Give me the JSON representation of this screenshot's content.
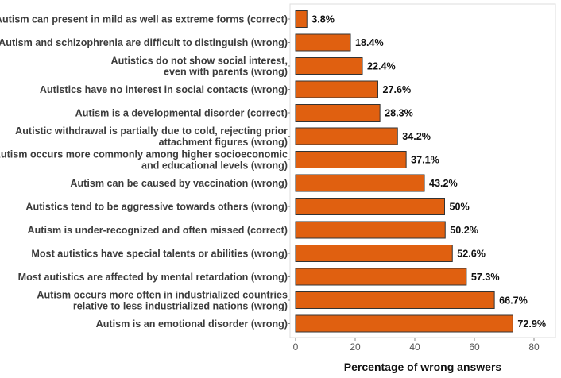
{
  "chart_data": {
    "type": "bar",
    "orientation": "horizontal",
    "title": "",
    "xlabel": "Percentage of wrong answers",
    "ylabel": "",
    "xlim": [
      0,
      88
    ],
    "xticks": [
      0,
      20,
      40,
      60,
      80
    ],
    "grid": false,
    "bar_color": "#e06010",
    "bar_edge_color": "#333333",
    "categories": [
      [
        "Autism can present in mild as well  as extreme forms (correct)"
      ],
      [
        "Autism and schizophrenia are difficult to distinguish (wrong)"
      ],
      [
        "Autistics do not show social interest,",
        "even with parents (wrong)"
      ],
      [
        "Autistics have no interest in social contacts (wrong)"
      ],
      [
        "Autism is a developmental disorder (correct)"
      ],
      [
        "Autistic withdrawal is partially due to cold, rejecting prior",
        "attachment figures (wrong)"
      ],
      [
        "Autism occurs more commonly among higher socioeconomic",
        "and educational levels (wrong)"
      ],
      [
        "Autism can be caused by vaccination (wrong)"
      ],
      [
        "Autistics tend to be aggressive towards others (wrong)"
      ],
      [
        "Autism is under-recognized and often missed (correct)"
      ],
      [
        "Most autistics have special talents or abilities (wrong)"
      ],
      [
        "Most autistics are affected by mental retardation (wrong)"
      ],
      [
        "Autism occurs more often in industrialized countries",
        "relative to less industrialized nations (wrong)"
      ],
      [
        "Autism is an emotional disorder (wrong)"
      ]
    ],
    "values": [
      3.8,
      18.4,
      22.4,
      27.6,
      28.3,
      34.2,
      37.1,
      43.2,
      50,
      50.2,
      52.6,
      57.3,
      66.7,
      72.9
    ],
    "data_labels": [
      "3.8%",
      "18.4%",
      "22.4%",
      "27.6%",
      "28.3%",
      "34.2%",
      "37.1%",
      "43.2%",
      "50%",
      "50.2%",
      "52.6%",
      "57.3%",
      "66.7%",
      "72.9%"
    ]
  }
}
